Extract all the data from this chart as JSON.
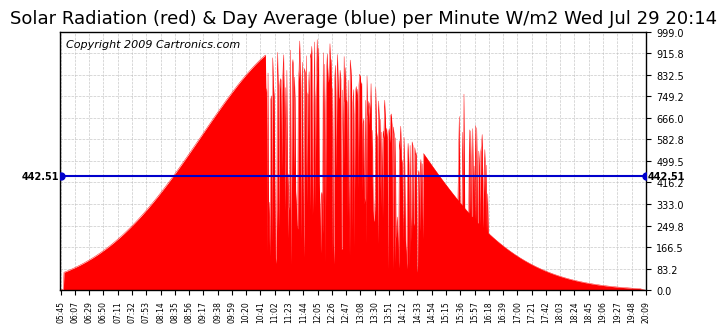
{
  "title": "Solar Radiation (red) & Day Average (blue) per Minute W/m2 Wed Jul 29 20:14",
  "copyright": "Copyright 2009 Cartronics.com",
  "y_max": 999.0,
  "y_min": 0.0,
  "y_ticks": [
    0.0,
    83.2,
    166.5,
    249.8,
    333.0,
    416.2,
    499.5,
    582.8,
    666.0,
    749.2,
    832.5,
    915.8,
    999.0
  ],
  "avg_value": 442.51,
  "x_labels": [
    "05:45",
    "06:07",
    "06:29",
    "06:50",
    "07:11",
    "07:32",
    "07:53",
    "08:14",
    "08:35",
    "08:56",
    "09:17",
    "09:38",
    "09:59",
    "10:20",
    "10:41",
    "11:02",
    "11:23",
    "11:44",
    "12:05",
    "12:26",
    "12:47",
    "13:08",
    "13:30",
    "13:51",
    "14:12",
    "14:33",
    "14:54",
    "15:15",
    "15:36",
    "15:57",
    "16:18",
    "16:39",
    "17:00",
    "17:21",
    "17:42",
    "18:03",
    "18:24",
    "18:45",
    "19:06",
    "19:27",
    "19:48",
    "20:09"
  ],
  "bar_color": "#ff0000",
  "avg_line_color": "#0000cc",
  "background_color": "#ffffff",
  "grid_color": "#bbbbbb",
  "title_fontsize": 13,
  "copyright_fontsize": 8
}
